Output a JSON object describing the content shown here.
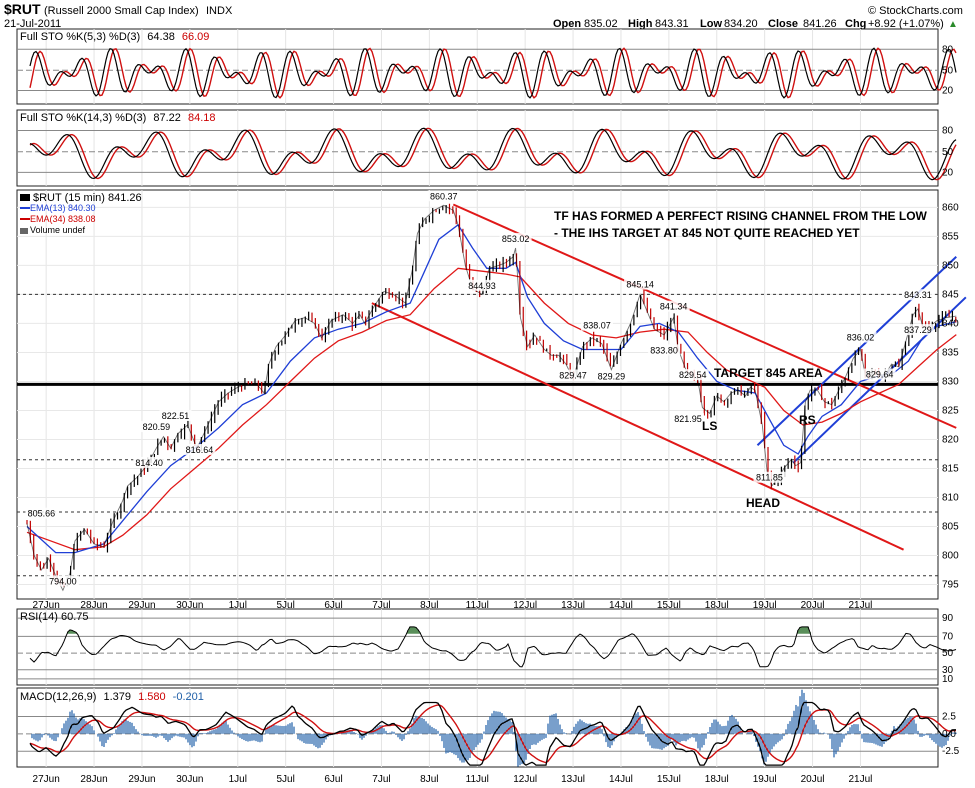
{
  "header": {
    "symbol": "$RUT",
    "name": "(Russell 2000 Small Cap Index)",
    "exchange": "INDX",
    "date": "21-Jul-2011",
    "open_label": "Open",
    "open": "835.02",
    "high_label": "High",
    "high": "843.31",
    "low_label": "Low",
    "low": "834.20",
    "close_label": "Close",
    "close": "841.26",
    "chg_label": "Chg",
    "chg": "+8.92 (+1.07%)",
    "chg_arrow": "▲",
    "brand": "© StockCharts.com"
  },
  "sto1": {
    "legend_prefix": "Full STO %K(5,3) %D(3)",
    "k": "64.38",
    "d": "66.09",
    "levels": [
      "80",
      "50",
      "20"
    ]
  },
  "sto2": {
    "legend_prefix": "Full STO %K(14,3) %D(3)",
    "k": "87.22",
    "d": "84.18",
    "levels": [
      "80",
      "50",
      "20"
    ]
  },
  "price_legend": {
    "main": "$RUT (15 min) 841.26",
    "ema13": "EMA(13) 840.30",
    "ema34": "EMA(34) 838.08",
    "volume": "Volume undef"
  },
  "rsi": {
    "legend": "RSI(14) 60.75",
    "levels": [
      "90",
      "70",
      "50",
      "30",
      "10"
    ]
  },
  "macd": {
    "prefix": "MACD(12,26,9)",
    "v1": "1.379",
    "v2": "1.580",
    "v3": "-0.201",
    "levels": [
      "2.5",
      "0.0",
      "-2.5"
    ]
  },
  "annotations": {
    "line1": "TF HAS FORMED A PERFECT RISING CHANNEL FROM THE LOW",
    "line2": "- THE IHS TARGET AT 845 NOT QUITE REACHED YET",
    "target": "TARGET 845 AREA",
    "ls": "LS",
    "head": "HEAD",
    "rs": "RS"
  },
  "chart_data": {
    "type": "line",
    "title": "$RUT (Russell 2000 Small Cap Index) INDX",
    "x_labels": [
      "27Jun",
      "28Jun",
      "29Jun",
      "30Jun",
      "1Jul",
      "5Jul",
      "6Jul",
      "7Jul",
      "8Jul",
      "11Jul",
      "12Jul",
      "13Jul",
      "14Jul",
      "15Jul",
      "18Jul",
      "19Jul",
      "20Jul",
      "21Jul"
    ],
    "y_ticks": [
      795,
      800,
      805,
      810,
      815,
      820,
      825,
      830,
      835,
      840,
      845,
      850,
      855,
      860
    ],
    "ylim": [
      792.5,
      863
    ],
    "price_labels": [
      {
        "text": "805.66",
        "x": 0.3,
        "y": 805.66
      },
      {
        "text": "794.00",
        "x": 0.75,
        "y": 794.0
      },
      {
        "text": "814.40",
        "x": 2.55,
        "y": 814.4
      },
      {
        "text": "820.59",
        "x": 2.7,
        "y": 820.59
      },
      {
        "text": "822.51",
        "x": 3.1,
        "y": 822.51
      },
      {
        "text": "816.64",
        "x": 3.6,
        "y": 816.64
      },
      {
        "text": "860.37",
        "x": 8.7,
        "y": 860.37
      },
      {
        "text": "844.93",
        "x": 9.5,
        "y": 844.93
      },
      {
        "text": "853.02",
        "x": 10.2,
        "y": 853.02
      },
      {
        "text": "829.47",
        "x": 11.4,
        "y": 829.47
      },
      {
        "text": "838.07",
        "x": 11.9,
        "y": 838.07
      },
      {
        "text": "829.29",
        "x": 12.2,
        "y": 829.29
      },
      {
        "text": "845.14",
        "x": 12.8,
        "y": 845.14
      },
      {
        "text": "841.34",
        "x": 13.5,
        "y": 841.34
      },
      {
        "text": "833.80",
        "x": 13.3,
        "y": 833.8
      },
      {
        "text": "829.54",
        "x": 13.9,
        "y": 829.54
      },
      {
        "text": "821.95",
        "x": 13.8,
        "y": 821.95
      },
      {
        "text": "811.85",
        "x": 15.5,
        "y": 811.85
      },
      {
        "text": "836.02",
        "x": 17.4,
        "y": 836.02
      },
      {
        "text": "829.64",
        "x": 17.8,
        "y": 829.64
      },
      {
        "text": "843.31",
        "x": 18.6,
        "y": 843.31
      },
      {
        "text": "837.29",
        "x": 18.6,
        "y": 837.29
      }
    ],
    "close_path": [
      [
        0.0,
        805.5
      ],
      [
        0.15,
        800.0
      ],
      [
        0.3,
        797.5
      ],
      [
        0.45,
        799.5
      ],
      [
        0.6,
        796.5
      ],
      [
        0.75,
        794.0
      ],
      [
        0.9,
        797.0
      ],
      [
        1.0,
        802.5
      ],
      [
        1.2,
        804.5
      ],
      [
        1.4,
        802.0
      ],
      [
        1.6,
        801.5
      ],
      [
        1.8,
        806.0
      ],
      [
        2.0,
        809.5
      ],
      [
        2.1,
        812.0
      ],
      [
        2.3,
        813.5
      ],
      [
        2.5,
        815.5
      ],
      [
        2.7,
        818.5
      ],
      [
        2.85,
        820.5
      ],
      [
        3.0,
        818.5
      ],
      [
        3.15,
        821.0
      ],
      [
        3.35,
        822.5
      ],
      [
        3.55,
        818.5
      ],
      [
        3.75,
        822.0
      ],
      [
        4.0,
        826.5
      ],
      [
        4.2,
        828.0
      ],
      [
        4.4,
        829.0
      ],
      [
        4.6,
        829.5
      ],
      [
        4.8,
        829.5
      ],
      [
        4.95,
        828.0
      ],
      [
        5.05,
        833.0
      ],
      [
        5.2,
        836.0
      ],
      [
        5.4,
        838.0
      ],
      [
        5.6,
        840.5
      ],
      [
        5.8,
        841.0
      ],
      [
        6.0,
        840.0
      ],
      [
        6.15,
        837.5
      ],
      [
        6.35,
        840.5
      ],
      [
        6.6,
        841.5
      ],
      [
        6.8,
        840.0
      ],
      [
        6.95,
        841.5
      ],
      [
        7.05,
        840.0
      ],
      [
        7.25,
        843.0
      ],
      [
        7.45,
        845.5
      ],
      [
        7.65,
        845.0
      ],
      [
        7.9,
        843.5
      ],
      [
        8.05,
        849.5
      ],
      [
        8.15,
        855.5
      ],
      [
        8.3,
        858.0
      ],
      [
        8.5,
        859.5
      ],
      [
        8.7,
        860.37
      ],
      [
        8.9,
        859.5
      ],
      [
        9.0,
        857.0
      ],
      [
        9.15,
        850.0
      ],
      [
        9.3,
        846.0
      ],
      [
        9.5,
        845.0
      ],
      [
        9.65,
        849.5
      ],
      [
        9.85,
        850.0
      ],
      [
        10.0,
        850.5
      ],
      [
        10.15,
        851.5
      ],
      [
        10.2,
        853.0
      ],
      [
        10.3,
        841.0
      ],
      [
        10.45,
        836.0
      ],
      [
        10.6,
        838.0
      ],
      [
        10.8,
        835.5
      ],
      [
        10.95,
        834.5
      ],
      [
        11.1,
        834.5
      ],
      [
        11.25,
        833.0
      ],
      [
        11.4,
        830.5
      ],
      [
        11.6,
        836.0
      ],
      [
        11.8,
        837.5
      ],
      [
        12.0,
        836.5
      ],
      [
        12.2,
        832.0
      ],
      [
        12.4,
        836.5
      ],
      [
        12.6,
        840.0
      ],
      [
        12.8,
        845.0
      ],
      [
        12.95,
        842.0
      ],
      [
        13.1,
        839.0
      ],
      [
        13.3,
        838.0
      ],
      [
        13.5,
        841.0
      ],
      [
        13.6,
        835.5
      ],
      [
        13.8,
        831.0
      ],
      [
        14.0,
        830.5
      ],
      [
        14.1,
        825.5
      ],
      [
        14.25,
        824.5
      ],
      [
        14.4,
        827.5
      ],
      [
        14.55,
        826.5
      ],
      [
        14.7,
        828.0
      ],
      [
        14.85,
        828.5
      ],
      [
        15.0,
        827.5
      ],
      [
        15.1,
        829.0
      ],
      [
        15.2,
        828.5
      ],
      [
        15.35,
        822.5
      ],
      [
        15.45,
        814.5
      ],
      [
        15.55,
        812.0
      ],
      [
        15.7,
        813.5
      ],
      [
        15.8,
        815.0
      ],
      [
        15.95,
        816.5
      ],
      [
        16.05,
        815.5
      ],
      [
        16.15,
        816.0
      ],
      [
        16.25,
        826.5
      ],
      [
        16.35,
        828.5
      ],
      [
        16.5,
        828.5
      ],
      [
        16.65,
        826.5
      ],
      [
        16.8,
        826.0
      ],
      [
        16.95,
        828.5
      ],
      [
        17.1,
        831.0
      ],
      [
        17.25,
        834.0
      ],
      [
        17.4,
        835.5
      ],
      [
        17.5,
        831.0
      ],
      [
        17.7,
        831.5
      ],
      [
        17.9,
        831.0
      ],
      [
        18.05,
        833.0
      ],
      [
        18.2,
        832.5
      ],
      [
        18.35,
        837.0
      ],
      [
        18.5,
        841.5
      ],
      [
        18.6,
        842.5
      ],
      [
        18.7,
        839.5
      ],
      [
        18.85,
        839.5
      ],
      [
        19.0,
        840.5
      ],
      [
        19.2,
        841.0
      ],
      [
        19.4,
        841.26
      ]
    ],
    "ema13_path": [
      [
        0.0,
        805.0
      ],
      [
        0.6,
        800.5
      ],
      [
        1.0,
        800.5
      ],
      [
        1.6,
        802.0
      ],
      [
        2.0,
        806.0
      ],
      [
        2.5,
        811.0
      ],
      [
        3.0,
        815.5
      ],
      [
        3.5,
        818.5
      ],
      [
        4.0,
        822.0
      ],
      [
        4.5,
        826.0
      ],
      [
        5.0,
        828.0
      ],
      [
        5.5,
        833.5
      ],
      [
        6.0,
        837.5
      ],
      [
        6.5,
        839.0
      ],
      [
        7.0,
        840.0
      ],
      [
        7.5,
        842.0
      ],
      [
        8.0,
        843.5
      ],
      [
        8.3,
        849.0
      ],
      [
        8.6,
        854.5
      ],
      [
        9.0,
        857.0
      ],
      [
        9.3,
        853.0
      ],
      [
        9.6,
        849.5
      ],
      [
        10.0,
        849.5
      ],
      [
        10.2,
        850.5
      ],
      [
        10.45,
        844.5
      ],
      [
        10.8,
        840.0
      ],
      [
        11.2,
        837.0
      ],
      [
        11.6,
        835.5
      ],
      [
        12.0,
        835.5
      ],
      [
        12.4,
        835.5
      ],
      [
        12.8,
        839.5
      ],
      [
        13.2,
        840.0
      ],
      [
        13.6,
        838.5
      ],
      [
        14.0,
        834.0
      ],
      [
        14.4,
        830.0
      ],
      [
        14.8,
        828.5
      ],
      [
        15.2,
        828.0
      ],
      [
        15.5,
        823.5
      ],
      [
        15.8,
        819.0
      ],
      [
        16.1,
        817.5
      ],
      [
        16.3,
        820.5
      ],
      [
        16.6,
        824.0
      ],
      [
        17.0,
        826.0
      ],
      [
        17.4,
        830.0
      ],
      [
        17.8,
        831.0
      ],
      [
        18.1,
        831.5
      ],
      [
        18.4,
        833.5
      ],
      [
        18.7,
        837.5
      ],
      [
        19.0,
        839.5
      ],
      [
        19.4,
        840.3
      ]
    ],
    "ema34_path": [
      [
        0.0,
        804.0
      ],
      [
        1.0,
        801.0
      ],
      [
        1.6,
        801.5
      ],
      [
        2.0,
        803.5
      ],
      [
        2.5,
        807.0
      ],
      [
        3.0,
        811.5
      ],
      [
        3.5,
        815.0
      ],
      [
        4.0,
        818.5
      ],
      [
        4.5,
        822.5
      ],
      [
        5.0,
        826.0
      ],
      [
        5.5,
        830.0
      ],
      [
        6.0,
        834.0
      ],
      [
        6.5,
        837.0
      ],
      [
        7.0,
        838.5
      ],
      [
        7.5,
        840.5
      ],
      [
        8.0,
        841.5
      ],
      [
        8.5,
        846.0
      ],
      [
        9.0,
        849.5
      ],
      [
        9.5,
        849.0
      ],
      [
        10.0,
        848.5
      ],
      [
        10.3,
        848.0
      ],
      [
        10.8,
        843.5
      ],
      [
        11.3,
        840.0
      ],
      [
        11.8,
        838.0
      ],
      [
        12.3,
        837.5
      ],
      [
        12.8,
        838.5
      ],
      [
        13.3,
        839.0
      ],
      [
        13.8,
        838.5
      ],
      [
        14.2,
        835.0
      ],
      [
        14.6,
        832.0
      ],
      [
        15.0,
        830.5
      ],
      [
        15.4,
        829.0
      ],
      [
        15.8,
        825.0
      ],
      [
        16.2,
        822.5
      ],
      [
        16.6,
        823.0
      ],
      [
        17.0,
        824.5
      ],
      [
        17.4,
        826.5
      ],
      [
        17.8,
        828.0
      ],
      [
        18.2,
        829.5
      ],
      [
        18.6,
        832.5
      ],
      [
        19.0,
        835.5
      ],
      [
        19.4,
        838.08
      ]
    ],
    "support_line": 829.5,
    "dashed_levels": [
      845.0,
      829.5,
      816.5,
      807.5,
      796.5
    ],
    "trendlines": [
      {
        "color": "red",
        "from": [
          8.9,
          860.5
        ],
        "to": [
          19.4,
          822.0
        ]
      },
      {
        "color": "red",
        "from": [
          7.2,
          843.5
        ],
        "to": [
          18.3,
          801.0
        ]
      },
      {
        "color": "blue",
        "from": [
          15.25,
          819.0
        ],
        "to": [
          19.4,
          851.5
        ]
      },
      {
        "color": "blue",
        "from": [
          16.0,
          816.0
        ],
        "to": [
          19.6,
          844.5
        ]
      }
    ]
  }
}
